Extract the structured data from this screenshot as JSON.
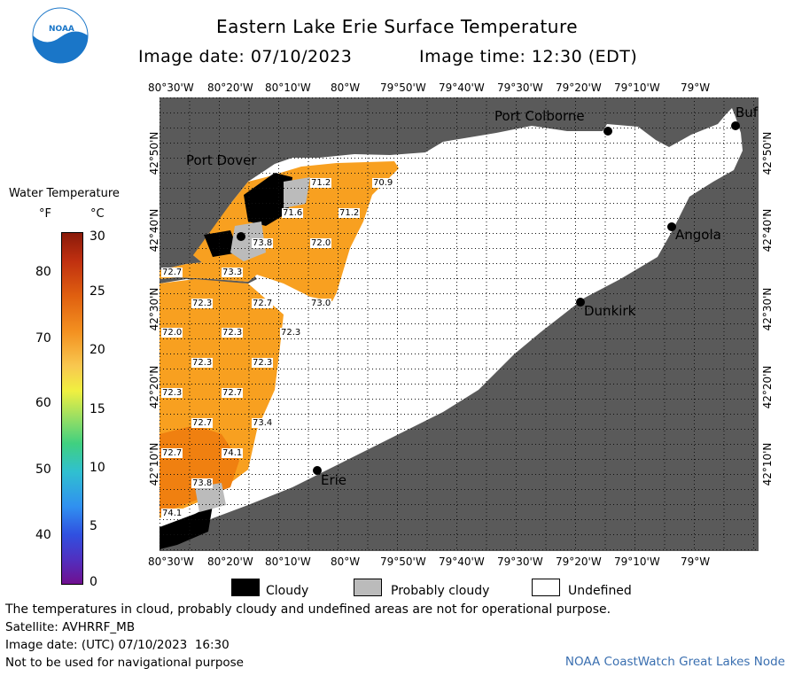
{
  "header": {
    "title": "Eastern Lake Erie Surface Temperature",
    "image_date": "Image date: 07/10/2023",
    "image_time": "Image time: 12:30 (EDT)"
  },
  "logo_text": "NOAA",
  "legend": {
    "title": "Water Temperature",
    "unit_f": "°F",
    "unit_c": "°C",
    "f_ticks": [
      "80",
      "70",
      "60",
      "50",
      "40"
    ],
    "c_ticks": [
      "30",
      "25",
      "20",
      "15",
      "10",
      "5",
      "0"
    ]
  },
  "axes": {
    "lon_labels": [
      "80°30'W",
      "80°20'W",
      "80°10'W",
      "80°W",
      "79°50'W",
      "79°40'W",
      "79°30'W",
      "79°20'W",
      "79°10'W",
      "79°W"
    ],
    "lat_labels": [
      "42°50'N",
      "42°40'N",
      "42°30'N",
      "42°20'N",
      "42°10'N"
    ]
  },
  "cities": {
    "port_colborne": "Port Colborne",
    "port_dover": "Port Dover",
    "buffalo": "Buf",
    "angola": "Angola",
    "dunkirk": "Dunkirk",
    "erie": "Erie"
  },
  "temps": [
    "71.2",
    "70.9",
    "71.6",
    "71.2",
    "73.8",
    "72.0",
    "72.7",
    "73.3",
    "72.3",
    "72.7",
    "73.0",
    "72.0",
    "72.3",
    "72.3",
    "72.3",
    "72.3",
    "72.3",
    "72.7",
    "72.7",
    "73.4",
    "72.7",
    "74.1",
    "73.8",
    "74.1"
  ],
  "key": {
    "cloudy": "Cloudy",
    "probably_cloudy": "Probably cloudy",
    "undefined": "Undefined"
  },
  "footer": {
    "note": "The temperatures in cloud, probably cloudy and undefined areas are not for operational purpose.",
    "satellite": "Satellite: AVHRRF_MB",
    "utc_date": "Image date: (UTC) 07/10/2023  16:30",
    "nav": "Not to be used for navigational purpose",
    "credit": "NOAA CoastWatch Great Lakes Node"
  },
  "colors": {
    "land": "#5a5a5a",
    "water_undefined": "#ffffff",
    "temp_72": "#f8a020",
    "temp_73": "#f08010",
    "cloudy": "#000000",
    "probably_cloudy": "#bbbbbb",
    "grid": "#111111"
  }
}
